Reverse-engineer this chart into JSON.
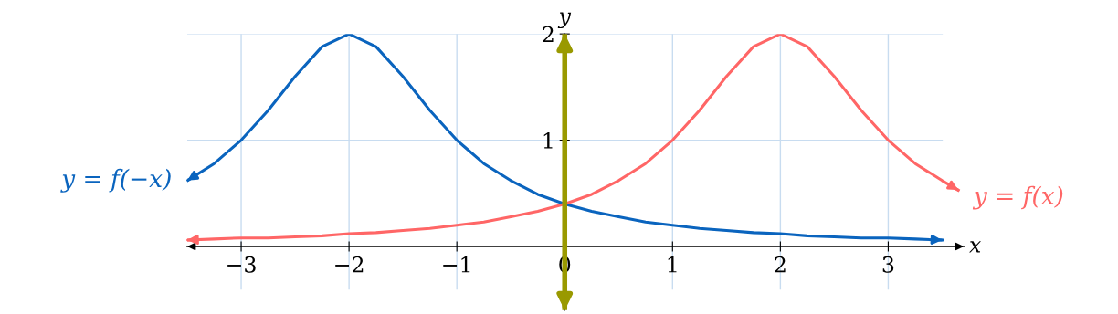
{
  "chart_data": {
    "type": "line",
    "xlabel": "x",
    "ylabel": "y",
    "xlim": [
      -3.5,
      3.7
    ],
    "ylim": [
      -0.6,
      2.0
    ],
    "xticks": [
      -3,
      -2,
      -1,
      {
        "value": 0,
        "label": "0"
      },
      1,
      2,
      3
    ],
    "yticks": [
      1,
      2
    ],
    "grid": true,
    "marker": "none",
    "line_style": "solid",
    "series": [
      {
        "name": "y = f(−x)",
        "color": "#0a64be",
        "x": [
          -3.5,
          -3.25,
          -3,
          -2.75,
          -2.5,
          -2.25,
          -2,
          -1.75,
          -1.5,
          -1.25,
          -1,
          -0.75,
          -0.5,
          -0.25,
          0,
          0.25,
          0.5,
          0.75,
          1,
          1.25,
          1.5,
          1.75,
          2,
          2.25,
          2.5,
          2.75,
          3,
          3.25,
          3.5
        ],
        "values": [
          0.62,
          0.78,
          1.0,
          1.28,
          1.6,
          1.88,
          2.0,
          1.88,
          1.6,
          1.28,
          1.0,
          0.78,
          0.62,
          0.49,
          0.4,
          0.33,
          0.28,
          0.23,
          0.2,
          0.17,
          0.15,
          0.13,
          0.12,
          0.1,
          0.09,
          0.08,
          0.08,
          0.07,
          0.06
        ]
      },
      {
        "name": "y = f(x)",
        "color": "#ff6666",
        "x": [
          -3.5,
          -3.25,
          -3,
          -2.75,
          -2.5,
          -2.25,
          -2,
          -1.75,
          -1.5,
          -1.25,
          -1,
          -0.75,
          -0.5,
          -0.25,
          0,
          0.25,
          0.5,
          0.75,
          1,
          1.25,
          1.5,
          1.75,
          2,
          2.25,
          2.5,
          2.75,
          3,
          3.25,
          3.5,
          3.65
        ],
        "values": [
          0.06,
          0.07,
          0.08,
          0.08,
          0.09,
          0.1,
          0.12,
          0.13,
          0.15,
          0.17,
          0.2,
          0.23,
          0.28,
          0.33,
          0.4,
          0.49,
          0.62,
          0.78,
          1.0,
          1.28,
          1.6,
          1.88,
          2.0,
          1.88,
          1.6,
          1.28,
          1.0,
          0.78,
          0.62,
          0.53
        ]
      }
    ],
    "ref_lines": [
      {
        "axis": "x",
        "value": 0,
        "color": "#999900"
      }
    ]
  }
}
